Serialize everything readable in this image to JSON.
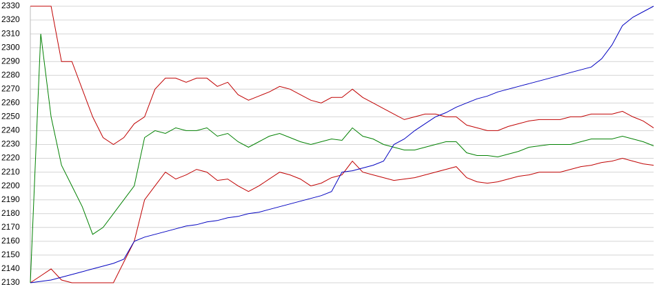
{
  "chart_data": {
    "type": "line",
    "categories": [
      null,
      null,
      null,
      null,
      null,
      null,
      null,
      null,
      null,
      null,
      null,
      null,
      null,
      null,
      null,
      null,
      null,
      null,
      null,
      null,
      null,
      null,
      null,
      null,
      null,
      null,
      null,
      null,
      null,
      null,
      null,
      null,
      null,
      null,
      null,
      null,
      null,
      null,
      null,
      null,
      null,
      null,
      null,
      null,
      null,
      null,
      null,
      null,
      null,
      null,
      null,
      null,
      null,
      null,
      null,
      null,
      null,
      null,
      null,
      null,
      null
    ],
    "series": [
      {
        "color": "#c00000",
        "values": [
          2130,
          2135,
          2140,
          2132,
          2130,
          2130,
          2130,
          2130,
          2130,
          2145,
          2160,
          2190,
          2200,
          2210,
          2205,
          2208,
          2212,
          2210,
          2204,
          2205,
          2200,
          2196,
          2200,
          2205,
          2210,
          2208,
          2205,
          2200,
          2202,
          2206,
          2208,
          2218,
          2210,
          2208,
          2206,
          2204,
          2205,
          2206,
          2208,
          2210,
          2212,
          2214,
          2206,
          2203,
          2202,
          2203,
          2205,
          2207,
          2208,
          2210,
          2210,
          2210,
          2212,
          2214,
          2215,
          2217,
          2218,
          2220,
          2218,
          2216,
          2215
        ]
      },
      {
        "color": "#c00000",
        "values": [
          2330,
          2330,
          2330,
          2290,
          2290,
          2270,
          2250,
          2235,
          2230,
          2235,
          2245,
          2250,
          2270,
          2278,
          2278,
          2275,
          2278,
          2278,
          2272,
          2275,
          2266,
          2262,
          2265,
          2268,
          2272,
          2270,
          2266,
          2262,
          2260,
          2264,
          2264,
          2270,
          2264,
          2260,
          2256,
          2252,
          2248,
          2250,
          2252,
          2252,
          2250,
          2250,
          2244,
          2242,
          2240,
          2240,
          2243,
          2245,
          2247,
          2248,
          2248,
          2248,
          2250,
          2250,
          2252,
          2252,
          2252,
          2254,
          2250,
          2247,
          2242
        ]
      },
      {
        "color": "#008000",
        "values": [
          2130,
          2310,
          2250,
          2215,
          2200,
          2185,
          2165,
          2170,
          2180,
          2190,
          2200,
          2235,
          2240,
          2238,
          2242,
          2240,
          2240,
          2242,
          2236,
          2238,
          2232,
          2228,
          2232,
          2236,
          2238,
          2235,
          2232,
          2230,
          2232,
          2234,
          2233,
          2242,
          2236,
          2234,
          2230,
          2228,
          2226,
          2226,
          2228,
          2230,
          2232,
          2232,
          2224,
          2222,
          2222,
          2221,
          2223,
          2225,
          2228,
          2229,
          2230,
          2230,
          2230,
          2232,
          2234,
          2234,
          2234,
          2236,
          2234,
          2232,
          2229
        ]
      },
      {
        "color": "#0000c0",
        "values": [
          2130,
          2131,
          2132,
          2134,
          2136,
          2138,
          2140,
          2142,
          2144,
          2147,
          2160,
          2163,
          2165,
          2167,
          2169,
          2171,
          2172,
          2174,
          2175,
          2177,
          2178,
          2180,
          2181,
          2183,
          2185,
          2187,
          2189,
          2191,
          2193,
          2196,
          2210,
          2211,
          2213,
          2215,
          2218,
          2230,
          2234,
          2240,
          2245,
          2250,
          2253,
          2257,
          2260,
          2263,
          2265,
          2268,
          2270,
          2272,
          2274,
          2276,
          2278,
          2280,
          2282,
          2284,
          2286,
          2292,
          2302,
          2316,
          2322,
          2326,
          2330
        ]
      }
    ],
    "ylim": [
      2130,
      2330
    ],
    "yticks": [
      2130,
      2140,
      2150,
      2160,
      2170,
      2180,
      2190,
      2200,
      2210,
      2220,
      2230,
      2240,
      2250,
      2260,
      2270,
      2280,
      2290,
      2300,
      2310,
      2320,
      2330
    ],
    "grid": true
  }
}
